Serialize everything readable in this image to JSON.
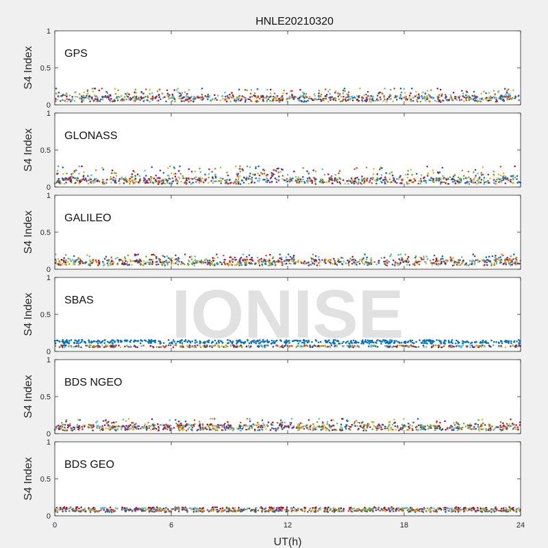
{
  "chart_data": {
    "type": "scatter",
    "title": "HNLE20210320",
    "xlabel": "UT(h)",
    "ylabel": "S4 Index",
    "xlim": [
      0,
      24
    ],
    "ylim": [
      0,
      1
    ],
    "x_ticks": [
      0,
      6,
      12,
      18,
      24
    ],
    "y_ticks": [
      0,
      0.5,
      1
    ],
    "y_tick_labels": [
      "0",
      "0.5",
      "1"
    ],
    "grid": false,
    "watermark": "IONISE",
    "watermark_panel": 3,
    "series_colors": [
      "#0072BD",
      "#D95319",
      "#EDB120",
      "#7E2F8E",
      "#77AC30",
      "#4DBEEE",
      "#A2142F"
    ],
    "panels": [
      {
        "label": "GPS",
        "base_s4": 0.08,
        "max_s4": 0.22,
        "note": "Dense scatter across all satellites, S4 mostly 0.05-0.15 over 0-24 UT"
      },
      {
        "label": "GLONASS",
        "base_s4": 0.08,
        "max_s4": 0.28,
        "note": "Arcs mostly 0.05-0.2, peak near 0.28 around 10 UT"
      },
      {
        "label": "GALILEO",
        "base_s4": 0.09,
        "max_s4": 0.2,
        "note": "Arcs mostly 0.05-0.15"
      },
      {
        "label": "SBAS",
        "base_s4": 0.13,
        "max_s4": 0.2,
        "note": "Continuous band near 0.12-0.15 (blue) with lower band near 0.07"
      },
      {
        "label": "BDS NGEO",
        "base_s4": 0.08,
        "max_s4": 0.2,
        "note": "Arcs mostly 0.05-0.15"
      },
      {
        "label": "BDS GEO",
        "base_s4": 0.09,
        "max_s4": 0.14,
        "note": "Continuous flat bands near 0.07-0.12"
      }
    ]
  }
}
